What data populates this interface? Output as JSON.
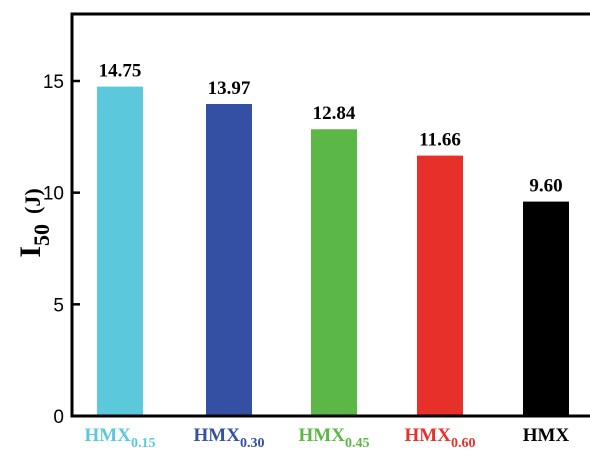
{
  "chart_data": {
    "type": "bar",
    "categories": [
      {
        "main": "HMX",
        "sub": "0.15"
      },
      {
        "main": "HMX",
        "sub": "0.30"
      },
      {
        "main": "HMX",
        "sub": "0.45"
      },
      {
        "main": "HMX",
        "sub": "0.60"
      },
      {
        "main": "HMX",
        "sub": ""
      }
    ],
    "values": [
      14.75,
      13.97,
      12.84,
      11.66,
      9.6
    ],
    "value_labels": [
      "14.75",
      "13.97",
      "12.84",
      "11.66",
      "9.60"
    ],
    "colors": [
      "#5bc8dc",
      "#3350a5",
      "#5bb846",
      "#e8302a",
      "#000000"
    ],
    "label_colors": [
      "#5bc8dc",
      "#3350a5",
      "#5bb846",
      "#e8302a",
      "#000000"
    ],
    "ylabel": {
      "main": "I",
      "sub": "50",
      "unit": "(J)"
    },
    "ylim": [
      0,
      18
    ],
    "yticks": [
      0,
      5,
      10,
      15
    ],
    "grid": false
  }
}
